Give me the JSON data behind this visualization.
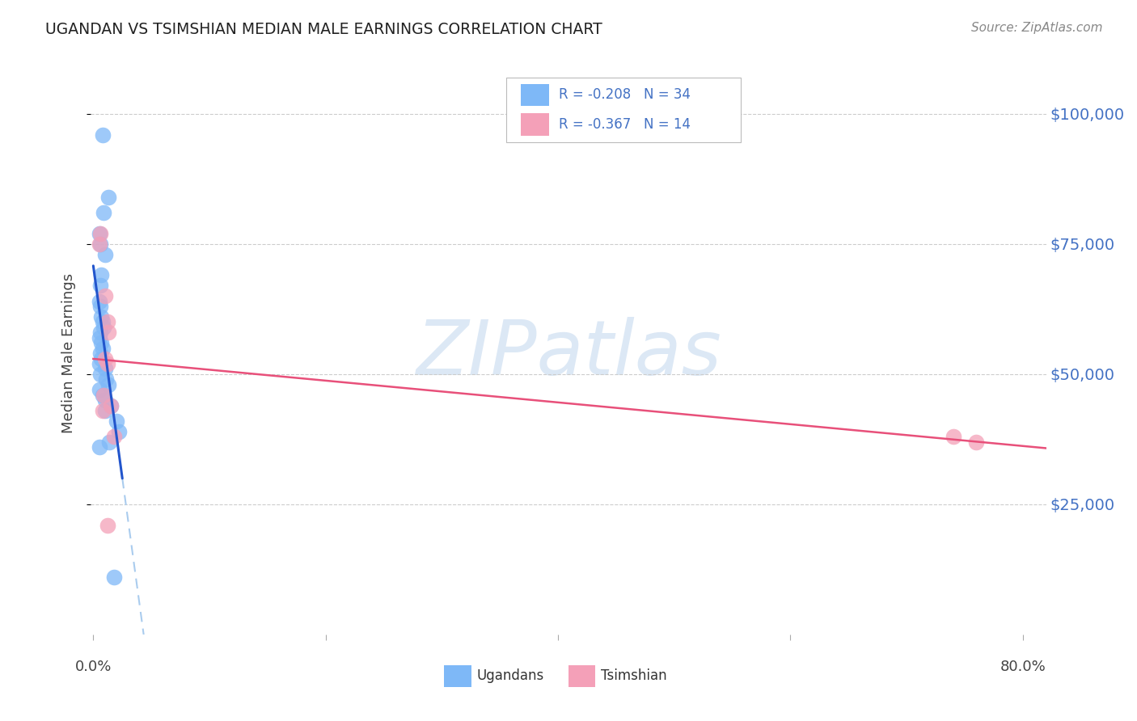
{
  "title": "UGANDAN VS TSIMSHIAN MEDIAN MALE EARNINGS CORRELATION CHART",
  "source": "Source: ZipAtlas.com",
  "ylabel": "Median Male Earnings",
  "ytick_labels": [
    "$25,000",
    "$50,000",
    "$75,000",
    "$100,000"
  ],
  "ytick_values": [
    25000,
    50000,
    75000,
    100000
  ],
  "ylim": [
    0,
    108000
  ],
  "xlim": [
    -0.002,
    0.82
  ],
  "ugandan_x": [
    0.008,
    0.013,
    0.009,
    0.005,
    0.006,
    0.01,
    0.007,
    0.006,
    0.005,
    0.006,
    0.007,
    0.008,
    0.009,
    0.006,
    0.005,
    0.007,
    0.008,
    0.006,
    0.007,
    0.005,
    0.01,
    0.006,
    0.011,
    0.013,
    0.005,
    0.008,
    0.01,
    0.015,
    0.02,
    0.022,
    0.005,
    0.014,
    0.018,
    0.01
  ],
  "ugandan_y": [
    96000,
    84000,
    81000,
    77000,
    75000,
    73000,
    69000,
    67000,
    64000,
    63000,
    61000,
    60000,
    59000,
    58000,
    57000,
    56000,
    55000,
    54000,
    53000,
    52000,
    51000,
    50000,
    49000,
    48000,
    47000,
    46000,
    45000,
    44000,
    41000,
    39000,
    36000,
    37000,
    11000,
    43000
  ],
  "tsimshian_x": [
    0.006,
    0.005,
    0.01,
    0.012,
    0.013,
    0.01,
    0.012,
    0.009,
    0.015,
    0.008,
    0.012,
    0.018,
    0.74,
    0.76
  ],
  "tsimshian_y": [
    77000,
    75000,
    65000,
    60000,
    58000,
    53000,
    52000,
    46000,
    44000,
    43000,
    21000,
    38000,
    38000,
    37000
  ],
  "ugandan_color": "#7eb8f7",
  "tsimshian_color": "#f4a0b8",
  "ugandan_trend_solid_color": "#2255cc",
  "ugandan_trend_dashed_color": "#aaccee",
  "tsimshian_trend_color": "#e8507a",
  "background_color": "#ffffff",
  "grid_color": "#cccccc",
  "watermark_color": "#dce8f5",
  "legend_r1": "R = -0.208",
  "legend_n1": "N = 34",
  "legend_r2": "R = -0.367",
  "legend_n2": "N = 14",
  "legend_text_color": "#4472c4",
  "ytick_color": "#4472c4",
  "title_color": "#222222",
  "source_color": "#888888",
  "ylabel_color": "#444444"
}
